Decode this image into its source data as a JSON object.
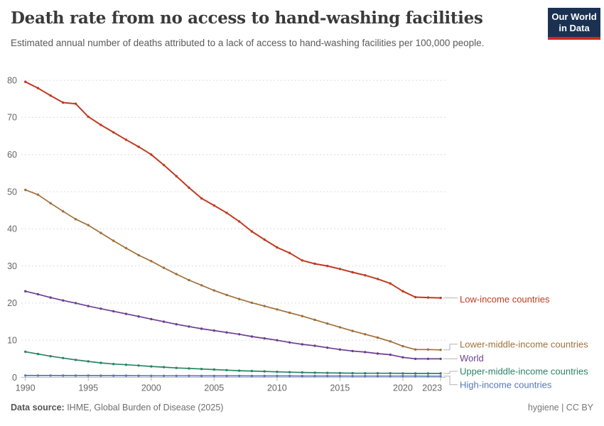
{
  "header": {
    "title": "Death rate from no access to hand-washing facilities",
    "subtitle": "Estimated annual number of deaths attributed to a lack of access to hand-washing facilities per 100,000 people.",
    "logo": {
      "line1": "Our World",
      "line2": "in Data",
      "bg_color": "#1A3152",
      "accent_color": "#D0281E"
    }
  },
  "footer": {
    "source_label": "Data source:",
    "source_text": " IHME, Global Burden of Disease (2025)",
    "right_text": "hygiene | CC BY"
  },
  "chart_data": {
    "type": "line",
    "title": "Death rate from no access to hand-washing facilities",
    "xlabel": "",
    "ylabel": "",
    "ylim": [
      0,
      80
    ],
    "grid": "horizontal-dashed",
    "legend_position": "right-of-line-ends",
    "x": [
      1990,
      1991,
      1992,
      1993,
      1994,
      1995,
      1996,
      1997,
      1998,
      1999,
      2000,
      2001,
      2002,
      2003,
      2004,
      2005,
      2006,
      2007,
      2008,
      2009,
      2010,
      2011,
      2012,
      2013,
      2014,
      2015,
      2016,
      2017,
      2018,
      2019,
      2020,
      2021,
      2022,
      2023
    ],
    "x_tick_labels": [
      "1990",
      "1995",
      "2000",
      "2005",
      "2010",
      "2015",
      "2020",
      "2023"
    ],
    "x_ticks": [
      1990,
      1995,
      2000,
      2005,
      2010,
      2015,
      2020,
      2023
    ],
    "y_ticks": [
      0,
      10,
      20,
      30,
      40,
      50,
      60,
      70,
      80
    ],
    "series": [
      {
        "name": "Low-income countries",
        "color": "#C13A21",
        "values": [
          79.6,
          77.9,
          75.9,
          74.0,
          73.7,
          70.2,
          68.0,
          66.0,
          64.0,
          62.1,
          60.0,
          57.2,
          54.2,
          51.1,
          48.2,
          46.3,
          44.3,
          42.0,
          39.3,
          37.1,
          35.0,
          33.5,
          31.5,
          30.6,
          30.0,
          29.2,
          28.3,
          27.5,
          26.5,
          25.3,
          23.2,
          21.6,
          21.5,
          21.4
        ]
      },
      {
        "name": "Lower-middle-income countries",
        "color": "#A0713A",
        "values": [
          50.5,
          49.2,
          46.9,
          44.7,
          42.6,
          41.0,
          38.9,
          36.8,
          34.8,
          32.9,
          31.3,
          29.5,
          27.8,
          26.2,
          24.8,
          23.4,
          22.2,
          21.1,
          20.1,
          19.2,
          18.3,
          17.4,
          16.5,
          15.5,
          14.5,
          13.5,
          12.5,
          11.6,
          10.7,
          9.7,
          8.4,
          7.5,
          7.5,
          7.4
        ]
      },
      {
        "name": "World",
        "color": "#6D3E91",
        "values": [
          23.2,
          22.4,
          21.5,
          20.7,
          20.0,
          19.2,
          18.5,
          17.8,
          17.1,
          16.4,
          15.7,
          15.0,
          14.3,
          13.7,
          13.1,
          12.6,
          12.1,
          11.6,
          11.0,
          10.5,
          10.0,
          9.4,
          8.9,
          8.5,
          8.0,
          7.5,
          7.1,
          6.8,
          6.4,
          6.1,
          5.4,
          5.0,
          5.0,
          5.0
        ]
      },
      {
        "name": "Upper-middle-income countries",
        "color": "#2C8465",
        "values": [
          6.9,
          6.3,
          5.7,
          5.2,
          4.7,
          4.3,
          3.9,
          3.6,
          3.4,
          3.2,
          2.95,
          2.75,
          2.55,
          2.4,
          2.25,
          2.1,
          1.95,
          1.8,
          1.7,
          1.6,
          1.5,
          1.4,
          1.32,
          1.26,
          1.2,
          1.16,
          1.12,
          1.1,
          1.1,
          1.1,
          1.08,
          1.05,
          1.05,
          1.05
        ]
      },
      {
        "name": "High-income countries",
        "color": "#5777B8",
        "values": [
          0.5,
          0.5,
          0.49,
          0.48,
          0.47,
          0.47,
          0.46,
          0.45,
          0.45,
          0.44,
          0.43,
          0.43,
          0.42,
          0.42,
          0.41,
          0.41,
          0.4,
          0.4,
          0.39,
          0.39,
          0.38,
          0.38,
          0.37,
          0.37,
          0.36,
          0.36,
          0.35,
          0.35,
          0.35,
          0.34,
          0.34,
          0.34,
          0.33,
          0.33
        ]
      }
    ]
  }
}
